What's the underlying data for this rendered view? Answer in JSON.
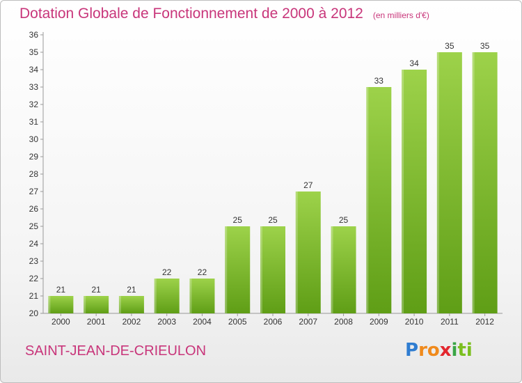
{
  "chart_data": {
    "type": "bar",
    "title": "Dotation Globale de Fonctionnement de 2000 à 2012",
    "subtitle": "(en milliers d'€)",
    "categories": [
      "2000",
      "2001",
      "2002",
      "2003",
      "2004",
      "2005",
      "2006",
      "2007",
      "2008",
      "2009",
      "2010",
      "2011",
      "2012"
    ],
    "values": [
      21,
      21,
      21,
      22,
      22,
      25,
      25,
      27,
      25,
      33,
      34,
      35,
      35
    ],
    "ylim": [
      20,
      36
    ],
    "yticks": [
      20,
      21,
      22,
      23,
      24,
      25,
      26,
      27,
      28,
      29,
      30,
      31,
      32,
      33,
      34,
      35,
      36
    ],
    "grid": false,
    "bar_color": "#7fbf2a"
  },
  "commune": "SAINT-JEAN-DE-CRIEULON",
  "logo": [
    "P",
    "r",
    "o",
    "x",
    "i",
    "ti"
  ]
}
